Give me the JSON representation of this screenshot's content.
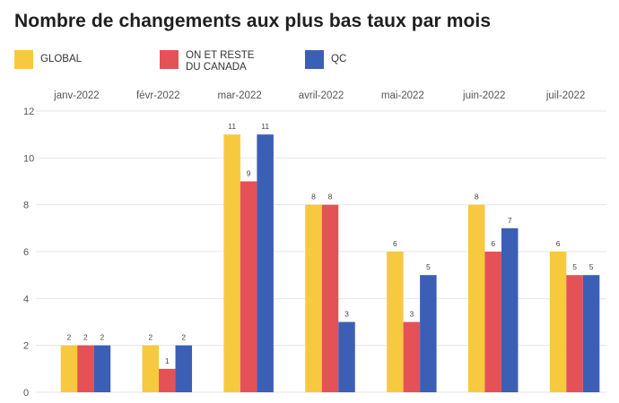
{
  "chart_data": {
    "type": "bar",
    "title": "Nombre de changements aux plus bas taux par mois",
    "categories": [
      "janv-2022",
      "févr-2022",
      "mar-2022",
      "avril-2022",
      "mai-2022",
      "juin-2022",
      "juil-2022"
    ],
    "series": [
      {
        "name": "GLOBAL",
        "color": "#f7c93e",
        "values": [
          2,
          2,
          11,
          8,
          6,
          8,
          6
        ]
      },
      {
        "name": "ON ET RESTE DU CANADA",
        "color": "#e45257",
        "values": [
          2,
          1,
          9,
          8,
          3,
          6,
          5
        ]
      },
      {
        "name": "QC",
        "color": "#3b5fb5",
        "values": [
          2,
          2,
          11,
          3,
          5,
          7,
          5
        ]
      }
    ],
    "legend": {
      "placement": "top-left",
      "labels": [
        "GLOBAL",
        "ON ET RESTE\nDU CANADA",
        "QC"
      ]
    },
    "ylim": [
      0,
      12
    ],
    "yticks": [
      0,
      2,
      4,
      6,
      8,
      10,
      12
    ],
    "xlabel": "",
    "ylabel": "",
    "category_labels_position": "top",
    "grid": true
  }
}
